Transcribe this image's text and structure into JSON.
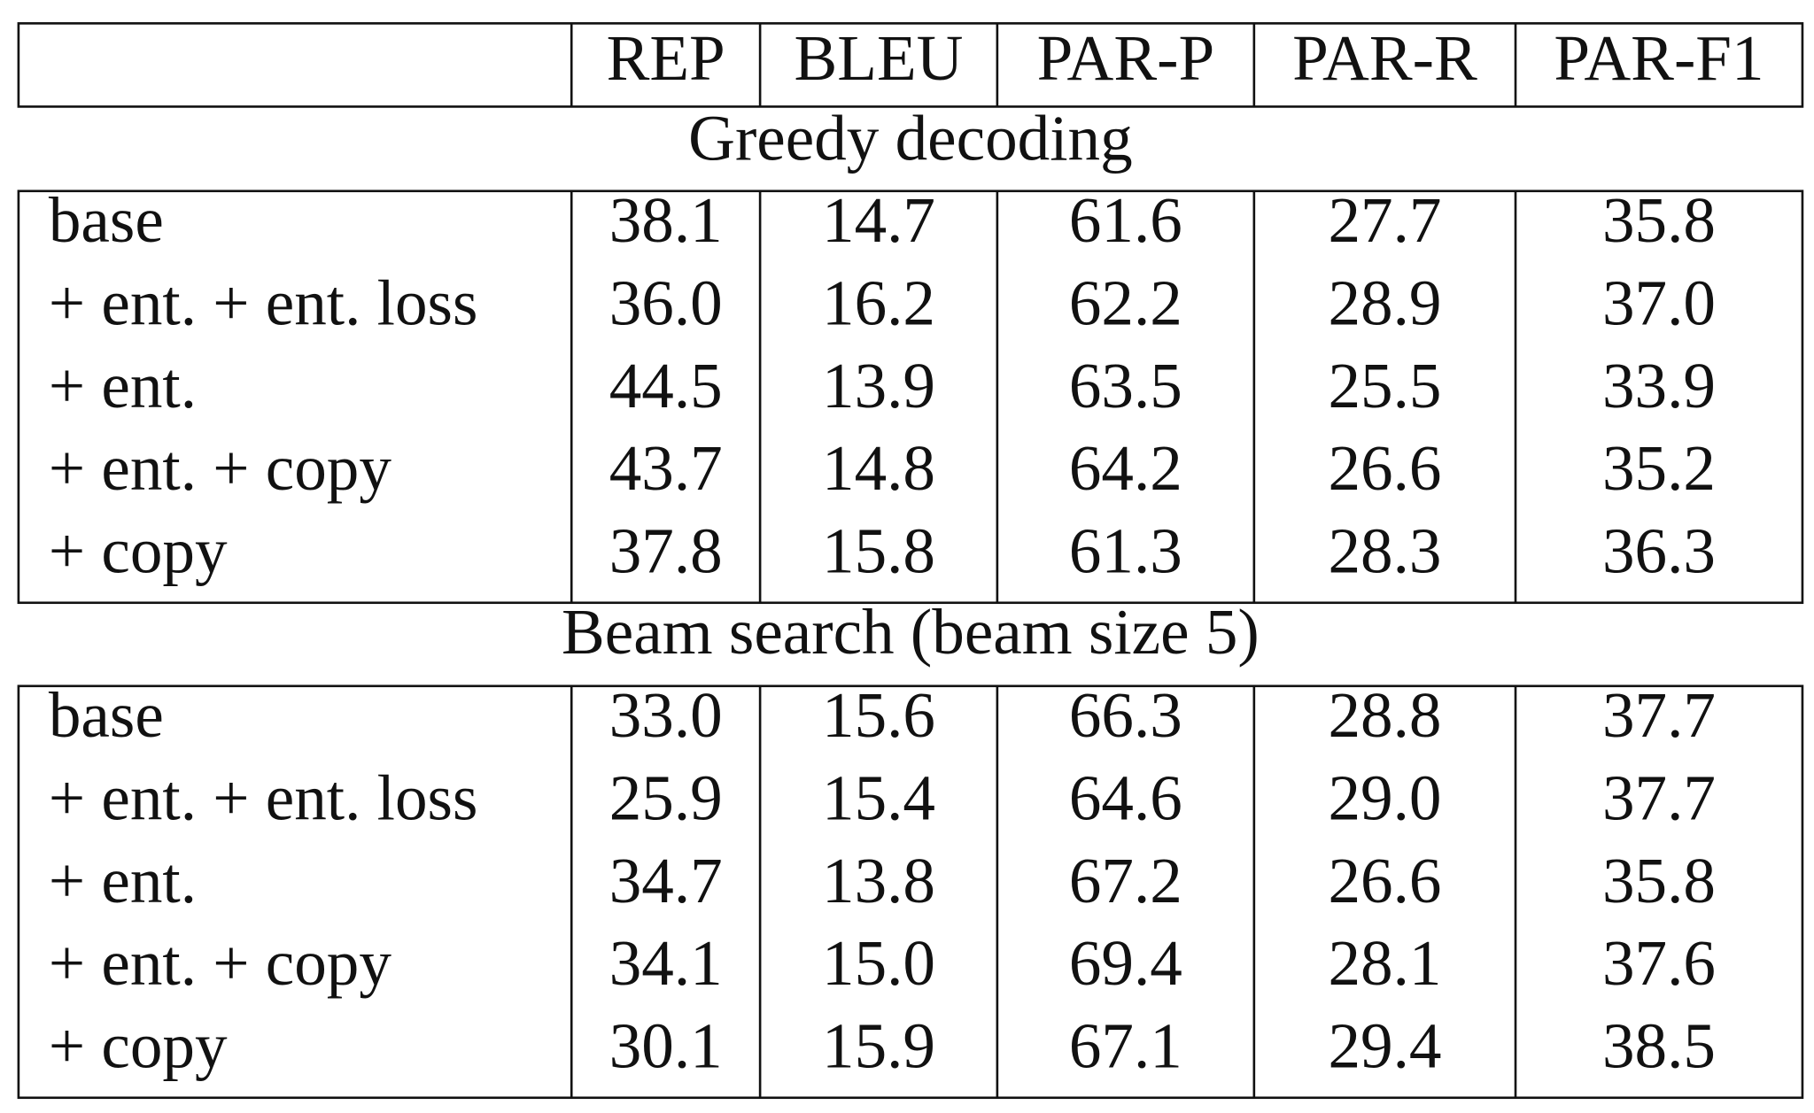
{
  "table": {
    "header": [
      "REP",
      "BLEU",
      "PAR-P",
      "PAR-R",
      "PAR-F1"
    ],
    "sections": [
      {
        "title": "Greedy decoding",
        "rows": [
          [
            "base",
            "38.1",
            "14.7",
            "61.6",
            "27.7",
            "35.8"
          ],
          [
            "+ ent. + ent. loss",
            "36.0",
            "16.2",
            "62.2",
            "28.9",
            "37.0"
          ],
          [
            "+ ent.",
            "44.5",
            "13.9",
            "63.5",
            "25.5",
            "33.9"
          ],
          [
            "+ ent. + copy",
            "43.7",
            "14.8",
            "64.2",
            "26.6",
            "35.2"
          ],
          [
            "+ copy",
            "37.8",
            "15.8",
            "61.3",
            "28.3",
            "36.3"
          ]
        ]
      },
      {
        "title": "Beam search (beam size 5)",
        "rows": [
          [
            "base",
            "33.0",
            "15.6",
            "66.3",
            "28.8",
            "37.7"
          ],
          [
            "+ ent. + ent. loss",
            "25.9",
            "15.4",
            "64.6",
            "29.0",
            "37.7"
          ],
          [
            "+ ent.",
            "34.7",
            "13.8",
            "67.2",
            "26.6",
            "35.8"
          ],
          [
            "+ ent. + copy",
            "34.1",
            "15.0",
            "69.4",
            "28.1",
            "37.6"
          ],
          [
            "+ copy",
            "30.1",
            "15.9",
            "67.1",
            "29.4",
            "38.5"
          ]
        ]
      }
    ]
  }
}
